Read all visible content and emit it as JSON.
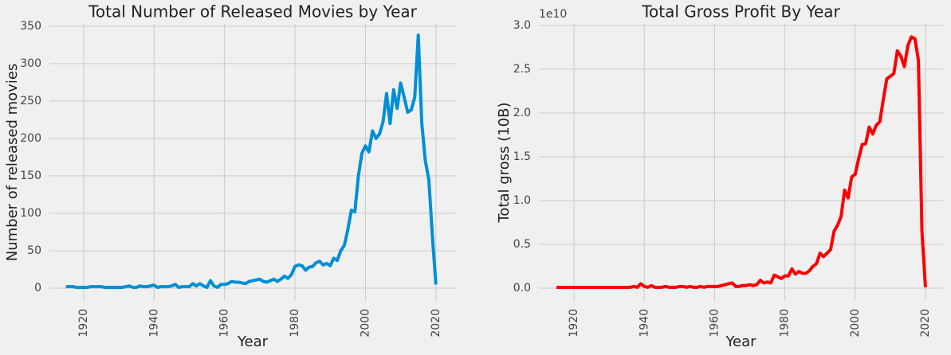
{
  "chart_data": [
    {
      "type": "line",
      "title": "Total Number of Released Movies by Year",
      "xlabel": "Year",
      "ylabel": "Number of released movies",
      "color": "#008fd5",
      "grid": true,
      "x": [
        1915,
        1916,
        1917,
        1918,
        1919,
        1920,
        1921,
        1922,
        1923,
        1924,
        1925,
        1926,
        1927,
        1928,
        1929,
        1930,
        1931,
        1932,
        1933,
        1934,
        1935,
        1936,
        1937,
        1938,
        1939,
        1940,
        1941,
        1942,
        1943,
        1944,
        1945,
        1946,
        1947,
        1948,
        1949,
        1950,
        1951,
        1952,
        1953,
        1954,
        1955,
        1956,
        1957,
        1958,
        1959,
        1960,
        1961,
        1962,
        1963,
        1964,
        1965,
        1966,
        1967,
        1968,
        1969,
        1970,
        1971,
        1972,
        1973,
        1974,
        1975,
        1976,
        1977,
        1978,
        1979,
        1980,
        1981,
        1982,
        1983,
        1984,
        1985,
        1986,
        1987,
        1988,
        1989,
        1990,
        1991,
        1992,
        1993,
        1994,
        1995,
        1996,
        1997,
        1998,
        1999,
        2000,
        2001,
        2002,
        2003,
        2004,
        2005,
        2006,
        2007,
        2008,
        2009,
        2010,
        2011,
        2012,
        2013,
        2014,
        2015,
        2016,
        2017,
        2018,
        2019,
        2020
      ],
      "values": [
        2,
        2,
        2,
        1,
        1,
        1,
        1,
        2,
        2,
        2,
        2,
        1,
        1,
        1,
        1,
        1,
        1,
        2,
        3,
        1,
        1,
        3,
        2,
        2,
        3,
        4,
        1,
        2,
        2,
        2,
        3,
        5,
        1,
        2,
        2,
        2,
        6,
        3,
        6,
        3,
        1,
        10,
        3,
        1,
        5,
        5,
        6,
        9,
        8,
        8,
        7,
        6,
        9,
        10,
        11,
        12,
        9,
        8,
        10,
        12,
        9,
        12,
        16,
        13,
        18,
        29,
        31,
        30,
        24,
        28,
        29,
        34,
        36,
        31,
        33,
        30,
        40,
        37,
        50,
        57,
        78,
        104,
        102,
        150,
        180,
        190,
        182,
        210,
        200,
        206,
        222,
        260,
        220,
        265,
        240,
        274,
        255,
        235,
        238,
        255,
        338,
        220,
        170,
        145,
        70,
        5
      ],
      "xlim": [
        1910.3,
        2025.7
      ],
      "xticks": [
        1920,
        1940,
        1960,
        1980,
        2000,
        2020
      ],
      "ylim": [
        -17,
        353
      ],
      "yticks": [
        0,
        50,
        100,
        150,
        200,
        250,
        300,
        350
      ]
    },
    {
      "type": "line",
      "title": "Total Gross Profit By Year",
      "xlabel": "Year",
      "ylabel": "Total gross (10B)",
      "y_offset_label": "1e10",
      "color": "#fc0000",
      "grid": true,
      "x": [
        1915,
        1916,
        1917,
        1918,
        1919,
        1920,
        1921,
        1922,
        1923,
        1924,
        1925,
        1926,
        1927,
        1928,
        1929,
        1930,
        1931,
        1932,
        1933,
        1934,
        1935,
        1936,
        1937,
        1938,
        1939,
        1940,
        1941,
        1942,
        1943,
        1944,
        1945,
        1946,
        1947,
        1948,
        1949,
        1950,
        1951,
        1952,
        1953,
        1954,
        1955,
        1956,
        1957,
        1958,
        1959,
        1960,
        1961,
        1962,
        1963,
        1964,
        1965,
        1966,
        1967,
        1968,
        1969,
        1970,
        1971,
        1972,
        1973,
        1974,
        1975,
        1976,
        1977,
        1978,
        1979,
        1980,
        1981,
        1982,
        1983,
        1984,
        1985,
        1986,
        1987,
        1988,
        1989,
        1990,
        1991,
        1992,
        1993,
        1994,
        1995,
        1996,
        1997,
        1998,
        1999,
        2000,
        2001,
        2002,
        2003,
        2004,
        2005,
        2006,
        2007,
        2008,
        2009,
        2010,
        2011,
        2012,
        2013,
        2014,
        2015,
        2016,
        2017,
        2018,
        2019,
        2020
      ],
      "values": [
        0.01,
        0.01,
        0.01,
        0.01,
        0.01,
        0.01,
        0.01,
        0.01,
        0.01,
        0.01,
        0.01,
        0.01,
        0.01,
        0.01,
        0.01,
        0.01,
        0.01,
        0.01,
        0.01,
        0.01,
        0.01,
        0.01,
        0.02,
        0.01,
        0.05,
        0.02,
        0.01,
        0.03,
        0.01,
        0.01,
        0.01,
        0.02,
        0.01,
        0.01,
        0.01,
        0.02,
        0.02,
        0.01,
        0.02,
        0.01,
        0.01,
        0.02,
        0.01,
        0.02,
        0.02,
        0.02,
        0.02,
        0.03,
        0.04,
        0.05,
        0.06,
        0.02,
        0.02,
        0.03,
        0.03,
        0.04,
        0.03,
        0.04,
        0.09,
        0.06,
        0.07,
        0.06,
        0.15,
        0.13,
        0.11,
        0.14,
        0.14,
        0.22,
        0.16,
        0.19,
        0.17,
        0.17,
        0.2,
        0.25,
        0.28,
        0.4,
        0.36,
        0.4,
        0.44,
        0.65,
        0.72,
        0.82,
        1.12,
        1.03,
        1.27,
        1.3,
        1.48,
        1.64,
        1.65,
        1.84,
        1.76,
        1.86,
        1.9,
        2.15,
        2.39,
        2.42,
        2.45,
        2.71,
        2.65,
        2.53,
        2.77,
        2.87,
        2.85,
        2.6,
        0.65,
        0.01
      ],
      "xlim": [
        1910,
        2025
      ],
      "xticks": [
        1920,
        1940,
        1960,
        1980,
        2000,
        2020
      ],
      "ylim": [
        -0.145,
        3.018
      ],
      "yticks": [
        {
          "value": 0,
          "label": "0.0"
        },
        {
          "value": 0.5,
          "label": "0.5"
        },
        {
          "value": 1,
          "label": "1.0"
        },
        {
          "value": 1.5,
          "label": "1.5"
        },
        {
          "value": 2,
          "label": "2.0"
        },
        {
          "value": 2.5,
          "label": "2.5"
        },
        {
          "value": 3,
          "label": "3.0"
        }
      ]
    }
  ]
}
